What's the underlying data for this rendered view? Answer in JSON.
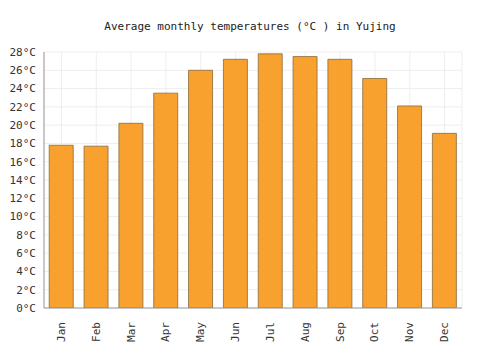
{
  "chart_data": {
    "type": "bar",
    "title": "Average monthly temperatures (°C ) in Yujing",
    "categories": [
      "Jan",
      "Feb",
      "Mar",
      "Apr",
      "May",
      "Jun",
      "Jul",
      "Aug",
      "Sep",
      "Oct",
      "Nov",
      "Dec"
    ],
    "values": [
      17.8,
      17.7,
      20.2,
      23.5,
      26.0,
      27.2,
      27.8,
      27.5,
      27.2,
      25.1,
      22.1,
      19.1
    ],
    "color": "#f9a12e",
    "ylim": [
      0,
      28
    ],
    "yticks": [
      {
        "value": 0,
        "label": "0°C"
      },
      {
        "value": 2,
        "label": "2°C"
      },
      {
        "value": 4,
        "label": "4°C"
      },
      {
        "value": 6,
        "label": "6°C"
      },
      {
        "value": 8,
        "label": "8°C"
      },
      {
        "value": 10,
        "label": "10°C"
      },
      {
        "value": 12,
        "label": "12°C"
      },
      {
        "value": 14,
        "label": "14°C"
      },
      {
        "value": 16,
        "label": "16°C"
      },
      {
        "value": 18,
        "label": "18°C"
      },
      {
        "value": 20,
        "label": "20°C"
      },
      {
        "value": 22,
        "label": "22°C"
      },
      {
        "value": 24,
        "label": "24°C"
      },
      {
        "value": 26,
        "label": "26°C"
      },
      {
        "value": 28,
        "label": "28°C"
      }
    ],
    "grid": true
  }
}
